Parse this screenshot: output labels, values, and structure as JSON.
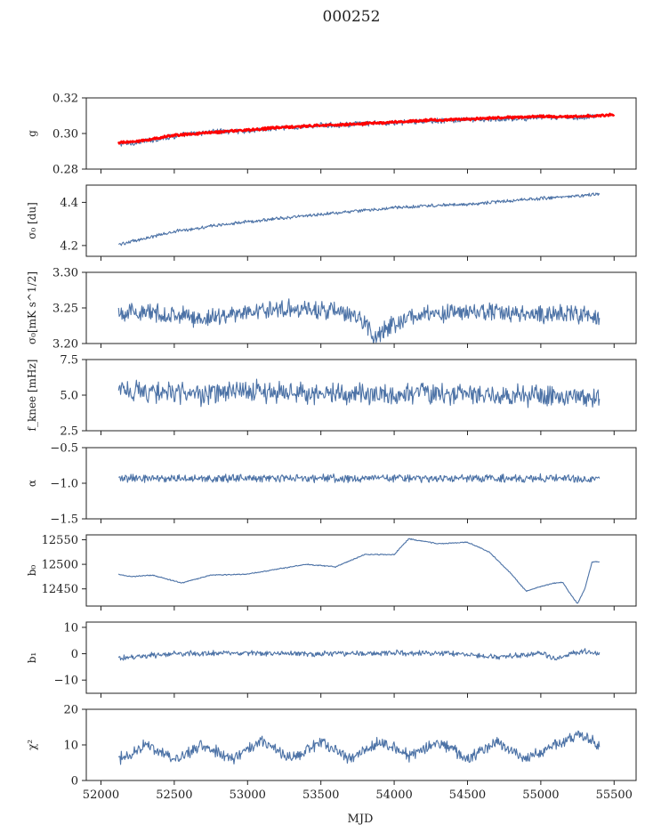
{
  "figure": {
    "title": "000252",
    "xlabel": "MJD"
  },
  "colors": {
    "series": "#4c72a6",
    "fit": "#ff0000",
    "axis": "#222222"
  },
  "chart_data": [
    {
      "type": "line",
      "id": "g",
      "ylabel": "g",
      "ylim": [
        0.28,
        0.32
      ],
      "yticks": [
        0.28,
        0.3,
        0.32
      ],
      "ytick_labels": [
        "0.28",
        "0.30",
        "0.32"
      ],
      "xlim": [
        51900,
        55650
      ],
      "show_xticklabels": false,
      "series": [
        {
          "x": [
            52120,
            52250,
            52500,
            52750,
            53000,
            53250,
            53500,
            53800,
            54000,
            54250,
            54500,
            54750,
            55000,
            55250,
            55400
          ],
          "values": [
            0.294,
            0.295,
            0.2985,
            0.301,
            0.3015,
            0.303,
            0.3045,
            0.3055,
            0.306,
            0.307,
            0.3075,
            0.308,
            0.309,
            0.309,
            0.31
          ],
          "noise": 0.0012,
          "style": "blue"
        },
        {
          "x": [
            52120,
            52250,
            52500,
            52750,
            53000,
            53250,
            53500,
            53800,
            54000,
            54250,
            54500,
            54750,
            55000,
            55250,
            55500
          ],
          "values": [
            0.295,
            0.2955,
            0.299,
            0.3005,
            0.302,
            0.3035,
            0.3045,
            0.3055,
            0.3065,
            0.3075,
            0.308,
            0.309,
            0.3095,
            0.3095,
            0.3105
          ],
          "noise": 0.0005,
          "style": "red"
        }
      ]
    },
    {
      "type": "line",
      "id": "sigma0",
      "ylabel": "σ₀ [du]",
      "ylim": [
        4.15,
        4.48
      ],
      "yticks": [
        4.2,
        4.4
      ],
      "ytick_labels": [
        "4.2",
        "4.4"
      ],
      "xlim": [
        51900,
        55650
      ],
      "show_xticklabels": false,
      "series": [
        {
          "x": [
            52120,
            52250,
            52500,
            52750,
            53000,
            53250,
            53500,
            53750,
            54000,
            54250,
            54500,
            54750,
            55000,
            55250,
            55400
          ],
          "values": [
            4.205,
            4.225,
            4.265,
            4.29,
            4.31,
            4.328,
            4.345,
            4.36,
            4.375,
            4.385,
            4.39,
            4.405,
            4.418,
            4.43,
            4.44
          ],
          "noise": 0.006,
          "style": "blue"
        }
      ]
    },
    {
      "type": "line",
      "id": "sigma0_mk",
      "ylabel": "σ₀[mK s^1/2]",
      "ylim": [
        3.2,
        3.3
      ],
      "yticks": [
        3.2,
        3.25,
        3.3
      ],
      "ytick_labels": [
        "3.20",
        "3.25",
        "3.30"
      ],
      "xlim": [
        51900,
        55650
      ],
      "show_xticklabels": false,
      "series": [
        {
          "x": [
            52120,
            52400,
            52700,
            53000,
            53300,
            53600,
            53800,
            53850,
            54100,
            54400,
            54700,
            55000,
            55200,
            55400
          ],
          "values": [
            3.245,
            3.242,
            3.235,
            3.245,
            3.25,
            3.245,
            3.232,
            3.21,
            3.238,
            3.243,
            3.245,
            3.24,
            3.243,
            3.235
          ],
          "noise": 0.01,
          "style": "blue"
        }
      ]
    },
    {
      "type": "line",
      "id": "fknee",
      "ylabel": "f_knee [mHz]",
      "ylim": [
        2.5,
        7.5
      ],
      "yticks": [
        2.5,
        5.0,
        7.5
      ],
      "ytick_labels": [
        "2.5",
        "5.0",
        "7.5"
      ],
      "xlim": [
        51900,
        55650
      ],
      "show_xticklabels": false,
      "series": [
        {
          "x": [
            52120,
            52400,
            52700,
            53000,
            53300,
            53600,
            53900,
            54200,
            54500,
            54800,
            55100,
            55400
          ],
          "values": [
            5.4,
            5.2,
            5.0,
            5.3,
            5.2,
            5.1,
            5.0,
            5.2,
            5.1,
            5.0,
            4.9,
            4.9
          ],
          "noise": 0.6,
          "style": "blue"
        }
      ]
    },
    {
      "type": "line",
      "id": "alpha",
      "ylabel": "α",
      "ylim": [
        -1.5,
        -0.5
      ],
      "yticks": [
        -1.5,
        -1.0,
        -0.5
      ],
      "ytick_labels": [
        "−1.5",
        "−1.0",
        "−0.5"
      ],
      "xlim": [
        51900,
        55650
      ],
      "show_xticklabels": false,
      "series": [
        {
          "x": [
            52120,
            52500,
            53000,
            53500,
            54000,
            54500,
            55000,
            55400
          ],
          "values": [
            -0.93,
            -0.93,
            -0.93,
            -0.93,
            -0.93,
            -0.93,
            -0.93,
            -0.95
          ],
          "noise": 0.045,
          "style": "blue"
        }
      ]
    },
    {
      "type": "line",
      "id": "b0",
      "ylabel": "b₀",
      "ylim": [
        12415,
        12560
      ],
      "yticks": [
        12450,
        12500,
        12550
      ],
      "ytick_labels": [
        "12450",
        "12500",
        "12550"
      ],
      "xlim": [
        51900,
        55650
      ],
      "show_xticklabels": false,
      "series": [
        {
          "x": [
            52120,
            52200,
            52350,
            52550,
            52750,
            53000,
            53200,
            53400,
            53600,
            53800,
            54000,
            54100,
            54300,
            54500,
            54650,
            54800,
            54900,
            55000,
            55100,
            55150,
            55200,
            55250,
            55300,
            55350,
            55400
          ],
          "values": [
            12480,
            12475,
            12478,
            12462,
            12478,
            12480,
            12490,
            12500,
            12495,
            12520,
            12520,
            12552,
            12542,
            12545,
            12525,
            12480,
            12445,
            12455,
            12462,
            12463,
            12440,
            12420,
            12450,
            12505,
            12505
          ],
          "noise": 0.8,
          "style": "blue"
        }
      ]
    },
    {
      "type": "line",
      "id": "b1",
      "ylabel": "b₁",
      "ylim": [
        -15,
        12
      ],
      "yticks": [
        -10,
        0,
        10
      ],
      "ytick_labels": [
        "−10",
        "0",
        "10"
      ],
      "xlim": [
        51900,
        55650
      ],
      "show_xticklabels": false,
      "series": [
        {
          "x": [
            52120,
            52500,
            53000,
            53500,
            54000,
            54500,
            54700,
            55000,
            55100,
            55200,
            55300,
            55400
          ],
          "values": [
            -1.5,
            0.0,
            0.2,
            0.0,
            0.3,
            0.0,
            -1.5,
            0.2,
            -2.0,
            0.0,
            1.0,
            0.0
          ],
          "noise": 0.8,
          "style": "blue"
        }
      ]
    },
    {
      "type": "line",
      "id": "chi2",
      "ylabel": "χ²",
      "ylim": [
        0,
        20
      ],
      "yticks": [
        0,
        10,
        20
      ],
      "ytick_labels": [
        "0",
        "10",
        "20"
      ],
      "xlim": [
        51900,
        55650
      ],
      "show_xticklabels": true,
      "xticks": [
        52000,
        52500,
        53000,
        53500,
        54000,
        54500,
        55000,
        55500
      ],
      "xtick_labels": [
        "52000",
        "52500",
        "53000",
        "53500",
        "54000",
        "54500",
        "55000",
        "55500"
      ],
      "series": [
        {
          "x": [
            52120,
            52300,
            52500,
            52700,
            52900,
            53100,
            53300,
            53500,
            53700,
            53900,
            54100,
            54300,
            54500,
            54700,
            54900,
            55100,
            55300,
            55400
          ],
          "values": [
            6,
            10,
            6,
            10,
            6,
            11,
            6,
            11,
            6,
            11,
            7,
            11,
            6,
            11,
            6,
            10,
            13,
            9
          ],
          "noise": 1.3,
          "style": "blue"
        }
      ]
    }
  ]
}
